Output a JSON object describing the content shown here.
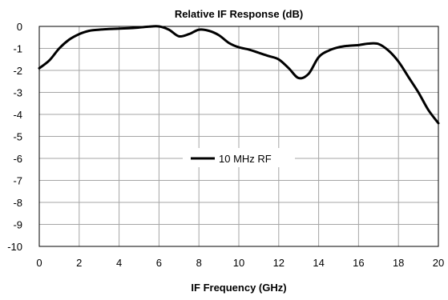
{
  "chart_data": {
    "type": "line",
    "title": "Relative IF Response (dB)",
    "xlabel": "IF Frequency  (GHz)",
    "ylabel": "",
    "xlim": [
      0,
      20
    ],
    "ylim": [
      -10,
      0
    ],
    "xticks": [
      0,
      2,
      4,
      6,
      8,
      10,
      12,
      14,
      16,
      18,
      20
    ],
    "yticks": [
      0,
      -1,
      -2,
      -3,
      -4,
      -5,
      -6,
      -7,
      -8,
      -9,
      -10
    ],
    "grid": true,
    "legend_position": "center",
    "series": [
      {
        "name": "10 MHz RF",
        "color": "#000000",
        "x": [
          0,
          0.5,
          1,
          1.5,
          2,
          2.5,
          3,
          3.5,
          4,
          4.5,
          5,
          5.5,
          6,
          6.5,
          7,
          7.5,
          8,
          8.5,
          9,
          9.5,
          10,
          10.5,
          11,
          11.5,
          12,
          12.5,
          13,
          13.5,
          14,
          14.5,
          15,
          15.5,
          16,
          16.5,
          17,
          17.5,
          18,
          18.5,
          19,
          19.5,
          20
        ],
        "y": [
          -1.9,
          -1.55,
          -1.0,
          -0.6,
          -0.35,
          -0.2,
          -0.15,
          -0.12,
          -0.1,
          -0.08,
          -0.05,
          -0.01,
          0.0,
          -0.15,
          -0.45,
          -0.35,
          -0.15,
          -0.2,
          -0.4,
          -0.75,
          -0.95,
          -1.05,
          -1.2,
          -1.35,
          -1.5,
          -1.9,
          -2.35,
          -2.15,
          -1.4,
          -1.1,
          -0.95,
          -0.88,
          -0.85,
          -0.78,
          -0.8,
          -1.1,
          -1.6,
          -2.3,
          -3.0,
          -3.8,
          -4.4
        ]
      }
    ]
  }
}
